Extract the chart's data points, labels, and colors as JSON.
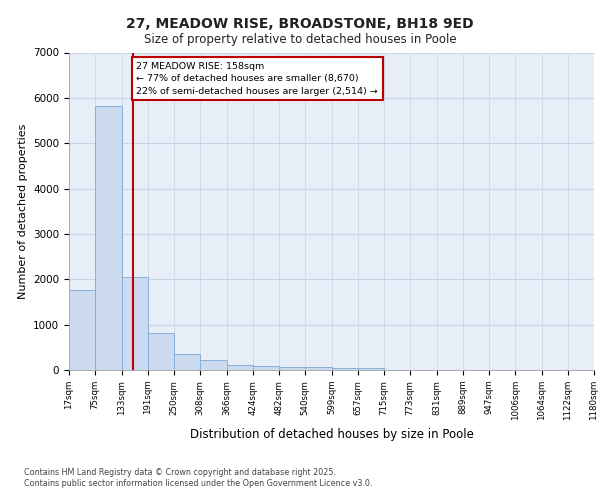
{
  "title1": "27, MEADOW RISE, BROADSTONE, BH18 9ED",
  "title2": "Size of property relative to detached houses in Poole",
  "xlabel": "Distribution of detached houses by size in Poole",
  "ylabel": "Number of detached properties",
  "bin_labels": [
    "17sqm",
    "75sqm",
    "133sqm",
    "191sqm",
    "250sqm",
    "308sqm",
    "366sqm",
    "424sqm",
    "482sqm",
    "540sqm",
    "599sqm",
    "657sqm",
    "715sqm",
    "773sqm",
    "831sqm",
    "889sqm",
    "947sqm",
    "1006sqm",
    "1064sqm",
    "1122sqm",
    "1180sqm"
  ],
  "bar_values": [
    1760,
    5820,
    2060,
    820,
    345,
    210,
    110,
    90,
    75,
    60,
    50,
    45,
    10,
    5,
    3,
    3,
    2,
    2,
    2,
    2
  ],
  "bar_color": "#ccdaf0",
  "bar_edge_color": "#7aaad8",
  "grid_color": "#c8d4e8",
  "background_color": "#e8eef8",
  "vline_color": "#bb0000",
  "vline_bin_index": 2.42,
  "annotation_text": "27 MEADOW RISE: 158sqm\n← 77% of detached houses are smaller (8,670)\n22% of semi-detached houses are larger (2,514) →",
  "annotation_box_edgecolor": "#bb0000",
  "ylim": [
    0,
    7000
  ],
  "yticks": [
    0,
    1000,
    2000,
    3000,
    4000,
    5000,
    6000,
    7000
  ],
  "footer1": "Contains HM Land Registry data © Crown copyright and database right 2025.",
  "footer2": "Contains public sector information licensed under the Open Government Licence v3.0."
}
